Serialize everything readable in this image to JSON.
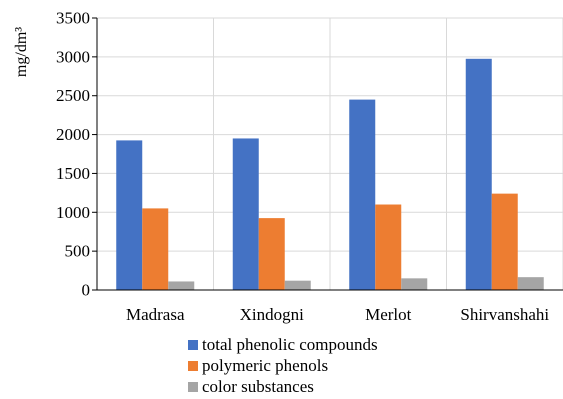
{
  "chart_data": {
    "type": "bar",
    "ylabel": "mg/dm³",
    "ylim": [
      0,
      3500
    ],
    "yticks": [
      0,
      500,
      1000,
      1500,
      2000,
      2500,
      3000,
      3500
    ],
    "grid": true,
    "legend_position": "bottom",
    "categories": [
      "Madrasa",
      "Xindogni",
      "Merlot",
      "Shirvanshahi"
    ],
    "series": [
      {
        "name": "total phenolic compounds",
        "color": "#4472C4",
        "values": [
          1925,
          1950,
          2450,
          2975
        ]
      },
      {
        "name": "polymeric phenols",
        "color": "#ED7D31",
        "values": [
          1050,
          925,
          1100,
          1240
        ]
      },
      {
        "name": "color substances",
        "color": "#A5A5A5",
        "values": [
          110,
          120,
          150,
          165
        ]
      }
    ]
  }
}
